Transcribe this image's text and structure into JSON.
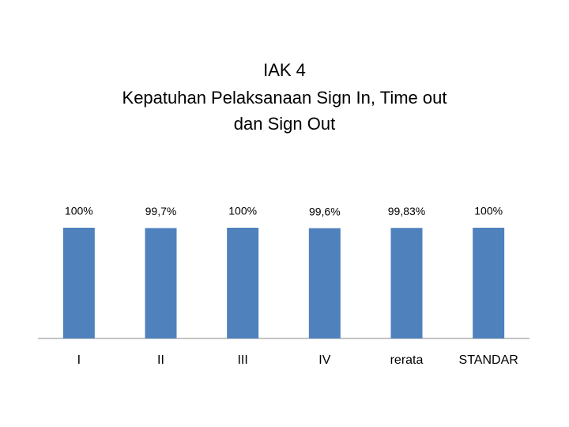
{
  "chart_data": {
    "type": "bar",
    "title": [
      "IAK 4",
      "Kepatuhan Pelaksanaan Sign In, Time out",
      "dan Sign Out"
    ],
    "categories": [
      "I",
      "II",
      "III",
      "IV",
      "rerata",
      "STANDAR"
    ],
    "values": [
      100,
      99.7,
      100,
      99.6,
      99.83,
      100
    ],
    "value_labels": [
      "100%",
      "99,7%",
      "100%",
      "99,6%",
      "99,83%",
      "100%"
    ],
    "color": "#4f81bd",
    "ylim": [
      0,
      100
    ]
  }
}
